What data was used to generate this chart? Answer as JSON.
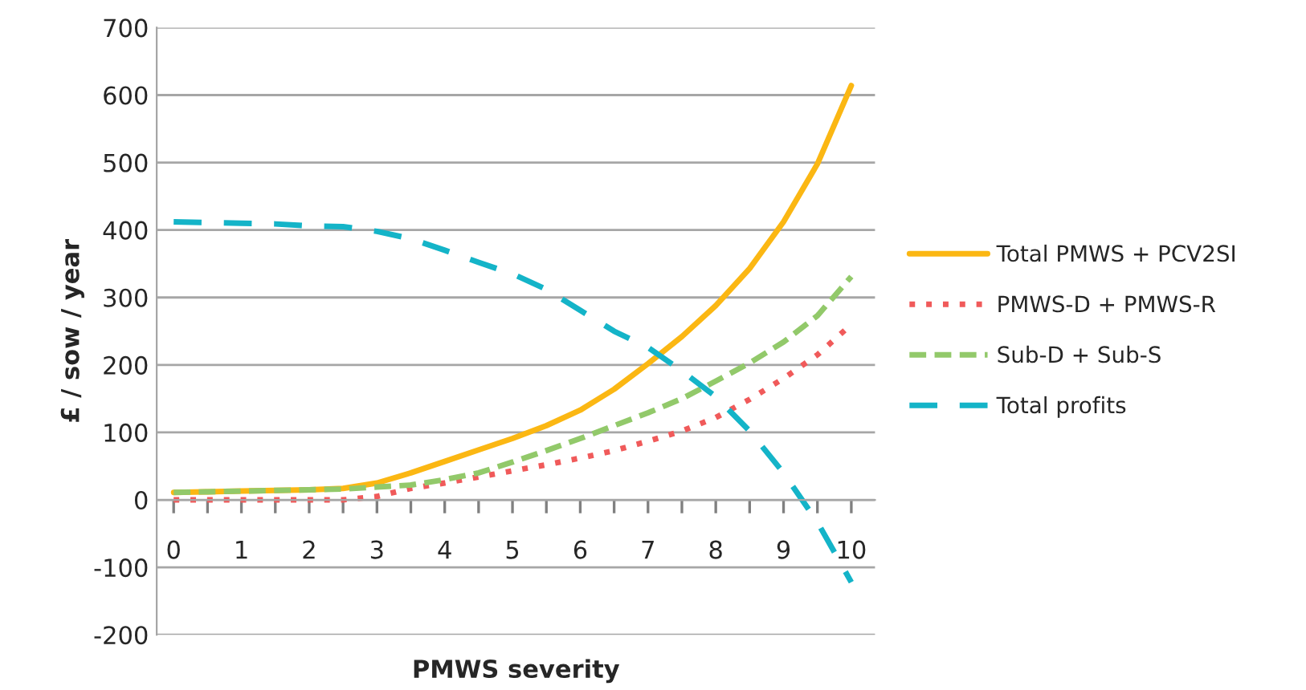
{
  "chart_data": {
    "type": "line",
    "xlabel": "PMWS severity",
    "ylabel": "£ / sow / year",
    "x": [
      0,
      0.5,
      1,
      1.5,
      2,
      2.5,
      3,
      3.5,
      4,
      4.5,
      5,
      5.5,
      6,
      6.5,
      7,
      7.5,
      8,
      8.5,
      9,
      9.5,
      10
    ],
    "series": [
      {
        "name": "Total PMWS + PCV2SI",
        "color": "#fbb713",
        "line_style": "solid",
        "values": [
          11,
          12,
          13,
          14,
          15,
          17,
          25,
          40,
          57,
          74,
          91,
          110,
          133,
          164,
          202,
          242,
          288,
          343,
          412,
          498,
          614
        ]
      },
      {
        "name": "PMWS-D + PMWS-R",
        "color": "#f05a5a",
        "line_style": "dotted",
        "values": [
          0,
          0,
          0,
          0,
          0,
          0,
          5,
          17,
          25,
          34,
          43,
          52,
          62,
          73,
          87,
          102,
          122,
          149,
          180,
          215,
          260
        ]
      },
      {
        "name": "Sub-D + Sub-S",
        "color": "#92c96a",
        "line_style": "dashed",
        "values": [
          11,
          12,
          13,
          14,
          15,
          16,
          19,
          22,
          30,
          40,
          56,
          73,
          91,
          110,
          129,
          150,
          176,
          203,
          234,
          273,
          331
        ]
      },
      {
        "name": "Total profits",
        "color": "#14b4c8",
        "line_style": "longdash",
        "values": [
          412,
          411,
          410,
          409,
          406,
          405,
          398,
          387,
          370,
          352,
          335,
          312,
          281,
          250,
          226,
          191,
          153,
          102,
          40,
          -33,
          -122
        ]
      }
    ],
    "xlim": [
      -0.25,
      10.35
    ],
    "xticks": [
      0,
      {
        "value": 0.5,
        "label": null
      },
      1,
      {
        "value": 1.5,
        "label": null
      },
      2,
      {
        "value": 2.5,
        "label": null
      },
      3,
      {
        "value": 3.5,
        "label": null
      },
      4,
      {
        "value": 4.5,
        "label": null
      },
      5,
      {
        "value": 5.5,
        "label": null
      },
      6,
      {
        "value": 6.5,
        "label": null
      },
      7,
      {
        "value": 7.5,
        "label": null
      },
      8,
      {
        "value": 8.5,
        "label": null
      },
      9,
      {
        "value": 9.5,
        "label": null
      },
      10
    ],
    "ylim": [
      -200,
      700
    ],
    "yticks": [
      -200,
      -100,
      0,
      100,
      200,
      300,
      400,
      500,
      600,
      700
    ],
    "grid": "y",
    "legend": "right",
    "marker": "none"
  }
}
